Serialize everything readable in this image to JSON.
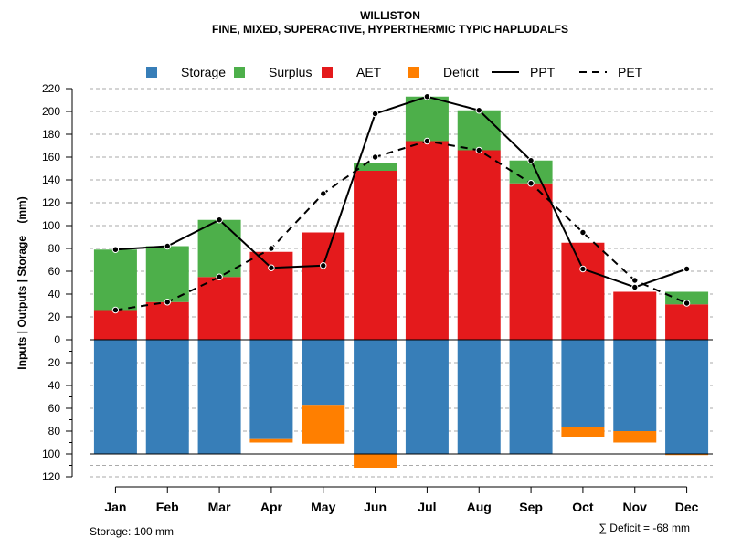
{
  "chart_data": {
    "type": "bar",
    "title": "WILLISTON",
    "subtitle": "FINE, MIXED, SUPERACTIVE, HYPERTHERMIC TYPIC HAPLUDALFS",
    "ylabel": "Inputs | Outputs | Storage    (mm)",
    "ylim": [
      -120,
      220
    ],
    "yticks_positive": [
      0,
      20,
      40,
      60,
      80,
      100,
      120,
      140,
      160,
      180,
      200,
      220
    ],
    "yticks_negative": [
      20,
      40,
      60,
      80,
      100,
      120
    ],
    "grid": true,
    "legend_position": "top",
    "categories": [
      "Jan",
      "Feb",
      "Mar",
      "Apr",
      "May",
      "Jun",
      "Jul",
      "Aug",
      "Sep",
      "Oct",
      "Nov",
      "Dec"
    ],
    "series": [
      {
        "name": "Storage",
        "values": [
          100,
          100,
          100,
          87,
          57,
          100,
          100,
          100,
          100,
          76,
          80,
          100
        ],
        "color": "#377eb8"
      },
      {
        "name": "Surplus",
        "values": [
          53,
          49,
          50,
          0,
          0,
          7,
          39,
          35,
          20,
          0,
          0,
          11
        ],
        "color": "#4daf4a"
      },
      {
        "name": "AET",
        "values": [
          26,
          33,
          55,
          77,
          94,
          148,
          174,
          166,
          137,
          85,
          42,
          31
        ],
        "color": "#e41a1c"
      },
      {
        "name": "Deficit",
        "values": [
          0,
          0,
          0,
          3,
          34,
          12,
          0,
          0,
          0,
          9,
          10,
          1
        ],
        "color": "#ff7f00"
      },
      {
        "name": "PPT",
        "values": [
          79,
          82,
          105,
          63,
          65,
          198,
          213,
          201,
          157,
          62,
          46,
          62
        ],
        "color": "#000000",
        "style": "solid"
      },
      {
        "name": "PET",
        "values": [
          26,
          33,
          55,
          80,
          128,
          160,
          174,
          166,
          137,
          94,
          52,
          32
        ],
        "color": "#000000",
        "style": "dashed"
      }
    ],
    "storage_note": "Storage: 100 mm",
    "deficit_note": "∑ Deficit = -68 mm"
  }
}
